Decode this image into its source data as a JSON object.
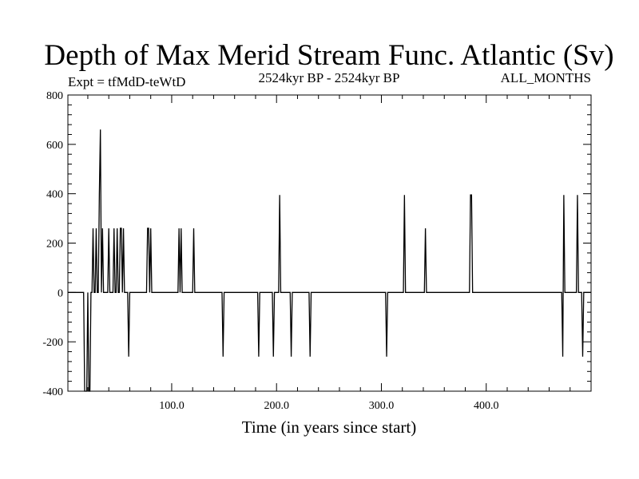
{
  "chart_data": {
    "type": "line",
    "title": "Depth of Max Merid Stream Func. Atlantic (Sv)",
    "subtitle_left": "Expt = tfMdD-teWtD",
    "subtitle_center": "2524kyr BP - 2524kyr BP",
    "subtitle_right": "ALL_MONTHS",
    "xlabel": "Time (in years since start)",
    "ylabel": "",
    "xlim": [
      1,
      500
    ],
    "ylim": [
      -400,
      800
    ],
    "x_ticks": [
      100,
      200,
      300,
      400
    ],
    "x_tick_labels": [
      "100.0",
      "200.0",
      "300.0",
      "400.0"
    ],
    "y_ticks": [
      -400,
      -200,
      0,
      200,
      400,
      600,
      800
    ],
    "y_tick_labels": [
      "-400",
      "-200",
      "0",
      "200",
      "400",
      "600",
      "800"
    ],
    "grid": false,
    "series": [
      {
        "x": [
          1,
          16,
          17,
          18,
          19,
          20,
          21,
          22,
          23,
          24,
          25,
          26,
          27,
          28,
          29,
          30,
          31,
          32,
          33,
          34,
          35,
          36,
          37,
          38,
          39,
          40,
          41,
          42,
          43,
          44,
          45,
          46,
          47,
          48,
          49,
          50,
          51,
          52,
          53,
          54,
          55,
          56,
          57,
          58,
          59,
          60,
          76,
          77,
          78,
          79,
          80,
          81,
          82,
          106,
          107,
          108,
          109,
          110,
          120,
          121,
          122,
          123,
          148,
          149,
          150,
          182,
          183,
          184,
          196,
          197,
          198,
          202,
          203,
          204,
          213,
          214,
          215,
          231,
          232,
          233,
          304,
          305,
          306,
          321,
          322,
          323,
          341,
          342,
          343,
          384,
          385,
          386,
          387,
          472,
          473,
          474,
          475,
          486,
          487,
          488,
          491,
          492,
          493,
          500
        ],
        "y": [
          0,
          0,
          -400,
          -400,
          -400,
          0,
          -400,
          -400,
          0,
          0,
          260,
          0,
          0,
          260,
          0,
          0,
          400,
          660,
          0,
          260,
          0,
          0,
          0,
          0,
          0,
          260,
          0,
          0,
          0,
          0,
          260,
          0,
          0,
          260,
          0,
          0,
          260,
          260,
          0,
          260,
          0,
          0,
          0,
          0,
          -260,
          0,
          0,
          260,
          260,
          0,
          260,
          0,
          0,
          0,
          260,
          0,
          260,
          0,
          0,
          260,
          0,
          0,
          0,
          -260,
          0,
          0,
          -260,
          0,
          0,
          -260,
          0,
          0,
          395,
          0,
          0,
          -260,
          0,
          0,
          -260,
          0,
          0,
          -260,
          0,
          0,
          395,
          0,
          0,
          260,
          0,
          0,
          395,
          395,
          0,
          0,
          -260,
          395,
          0,
          0,
          395,
          0,
          0,
          -260,
          0,
          0
        ]
      }
    ]
  }
}
